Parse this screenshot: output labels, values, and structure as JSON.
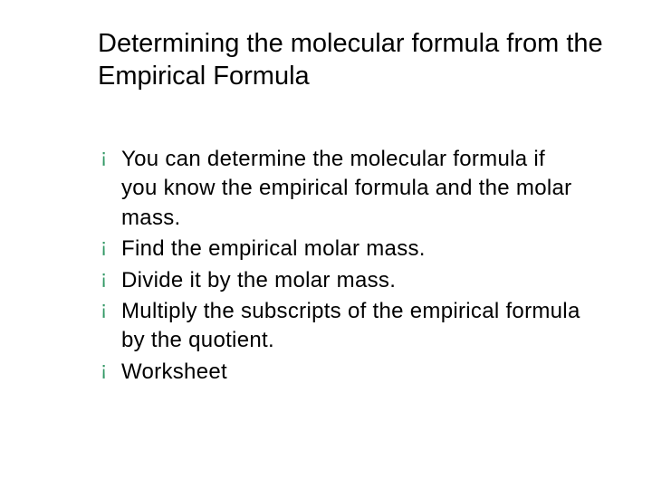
{
  "title": "Determining the molecular formula from the Empirical Formula",
  "bullets": {
    "b0": "You can determine the molecular formula if you know the empirical formula and the molar mass.",
    "b1": "Find the empirical molar mass.",
    "b2": "Divide it by the molar mass.",
    "b3": "Multiply the subscripts of the empirical formula by the quotient.",
    "b4": "Worksheet"
  },
  "bullet_marker": "¡",
  "colors": {
    "bullet_accent": "#339966",
    "text": "#000000",
    "background": "#ffffff"
  },
  "typography": {
    "title_fontsize": 29,
    "body_fontsize": 24,
    "font_family": "Verdana"
  }
}
